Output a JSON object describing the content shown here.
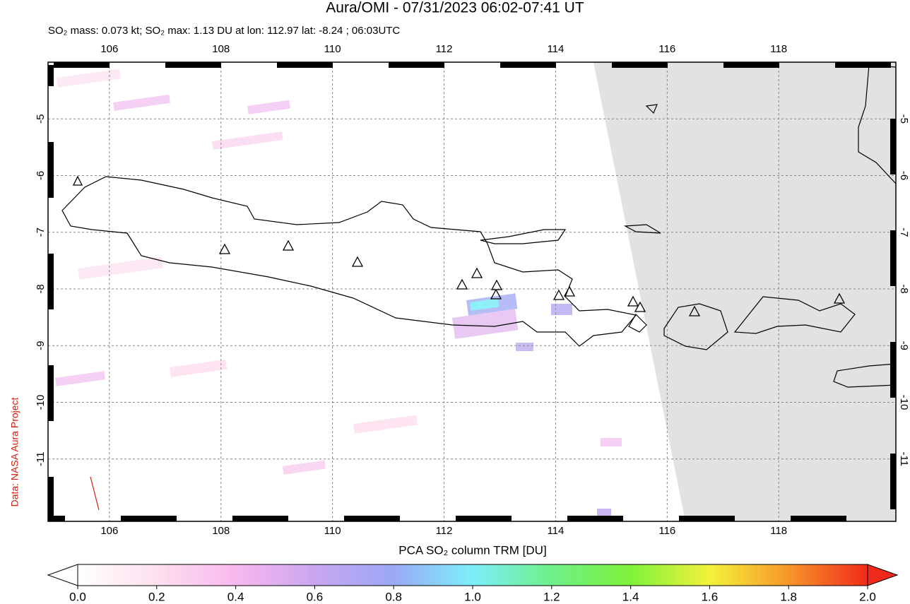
{
  "title": "Aura/OMI - 07/31/2023 06:02-07:41 UT",
  "subtitle": "SO₂ mass: 0.073 kt; SO₂ max: 1.13 DU at lon: 112.97 lat: -8.24 ; 06:03UTC",
  "credit": "Data: NASA Aura Project",
  "map": {
    "xlim": [
      104.9,
      120.1
    ],
    "ylim": [
      -12.1,
      -4
    ],
    "xticks": [
      106,
      108,
      110,
      112,
      114,
      116,
      118
    ],
    "yticks": [
      -5,
      -6,
      -7,
      -8,
      -9,
      -10,
      -11
    ],
    "grid": true
  },
  "colorbar": {
    "label": "PCA SO₂ column TRM [DU]",
    "lim": [
      0,
      2
    ],
    "ticks": [
      {
        "value": 0,
        "label": "0.0"
      },
      {
        "value": 0.2,
        "label": "0.2"
      },
      {
        "value": 0.4,
        "label": "0.4"
      },
      {
        "value": 0.6,
        "label": "0.6"
      },
      {
        "value": 0.8,
        "label": "0.8"
      },
      {
        "value": 1,
        "label": "1.0"
      },
      {
        "value": 1.2,
        "label": "1.2"
      },
      {
        "value": 1.4,
        "label": "1.4"
      },
      {
        "value": 1.6,
        "label": "1.6"
      },
      {
        "value": 1.8,
        "label": "1.8"
      },
      {
        "value": 2,
        "label": "2.0"
      }
    ]
  }
}
